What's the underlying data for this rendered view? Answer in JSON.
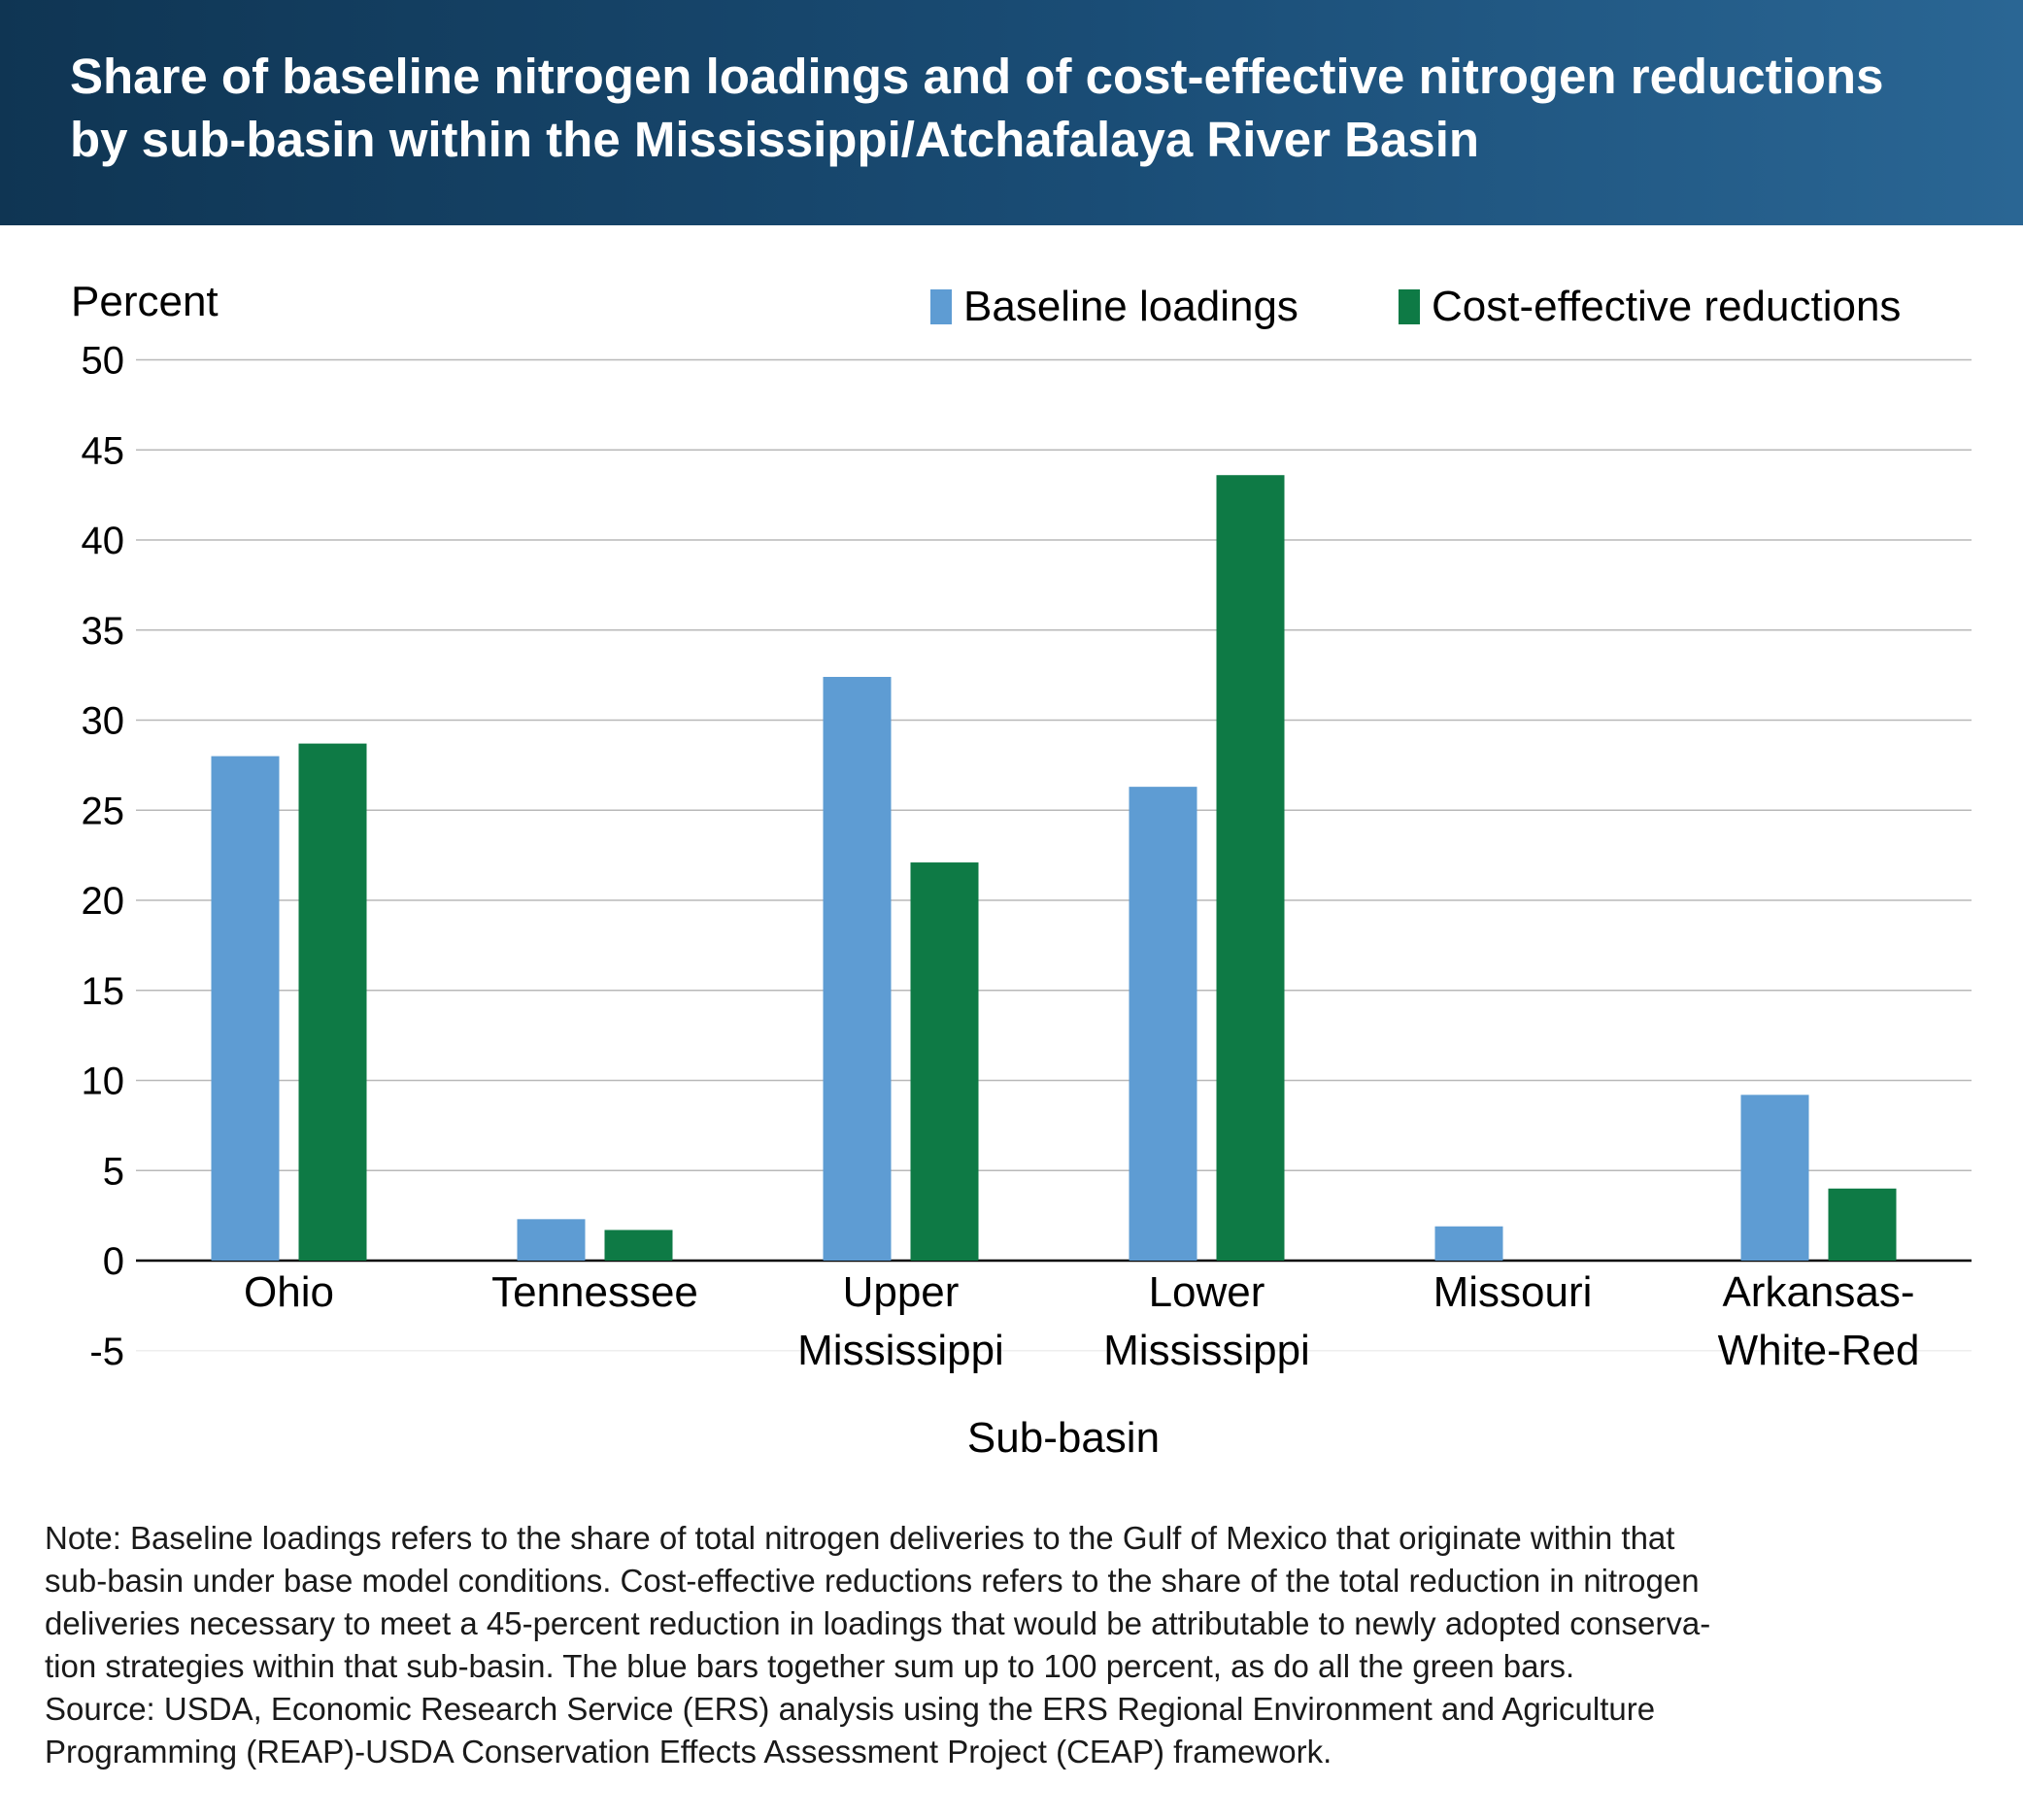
{
  "header": {
    "title": "Share of baseline nitrogen loadings and of cost-effective nitrogen reductions\nby sub-basin within the Mississippi/Atchafalaya River Basin"
  },
  "chart_data": {
    "type": "bar",
    "ylabel": "Percent",
    "xlabel": "Sub-basin",
    "ylim": [
      -5,
      50
    ],
    "yticks": [
      -5,
      0,
      5,
      10,
      15,
      20,
      25,
      30,
      35,
      40,
      45,
      50
    ],
    "grid": true,
    "legend_position": "top-right",
    "categories": [
      "Ohio",
      "Tennessee",
      "Upper Mississippi",
      "Lower Mississippi",
      "Missouri",
      "Arkansas-White-Red"
    ],
    "category_labels": [
      [
        "Ohio"
      ],
      [
        "Tennessee"
      ],
      [
        "Upper",
        "Mississippi"
      ],
      [
        "Lower",
        "Mississippi"
      ],
      [
        "Missouri"
      ],
      [
        "Arkansas-",
        "White-Red"
      ]
    ],
    "series": [
      {
        "name": "Baseline loadings",
        "color": "#5e9cd3",
        "values": [
          28.0,
          2.3,
          32.4,
          26.3,
          1.9,
          9.2
        ]
      },
      {
        "name": "Cost-effective reductions",
        "color": "#0e7a45",
        "values": [
          28.7,
          1.7,
          22.1,
          43.6,
          0.0,
          4.0
        ]
      }
    ]
  },
  "note": {
    "text": "Note: Baseline loadings refers to the share of total nitrogen deliveries to the Gulf of Mexico that originate within that\nsub-basin under base model conditions. Cost-effective reductions refers to the share of the total reduction in nitrogen\ndeliveries necessary to meet a 45-percent reduction in loadings that would be attributable to newly adopted conserva-\ntion strategies within that sub-basin. The blue bars together sum up to 100 percent, as do all the green bars.",
    "source": "Source: USDA, Economic Research Service (ERS) analysis using the ERS Regional Environment and Agriculture\nProgramming (REAP)-USDA Conservation Effects Assessment Project (CEAP) framework."
  }
}
